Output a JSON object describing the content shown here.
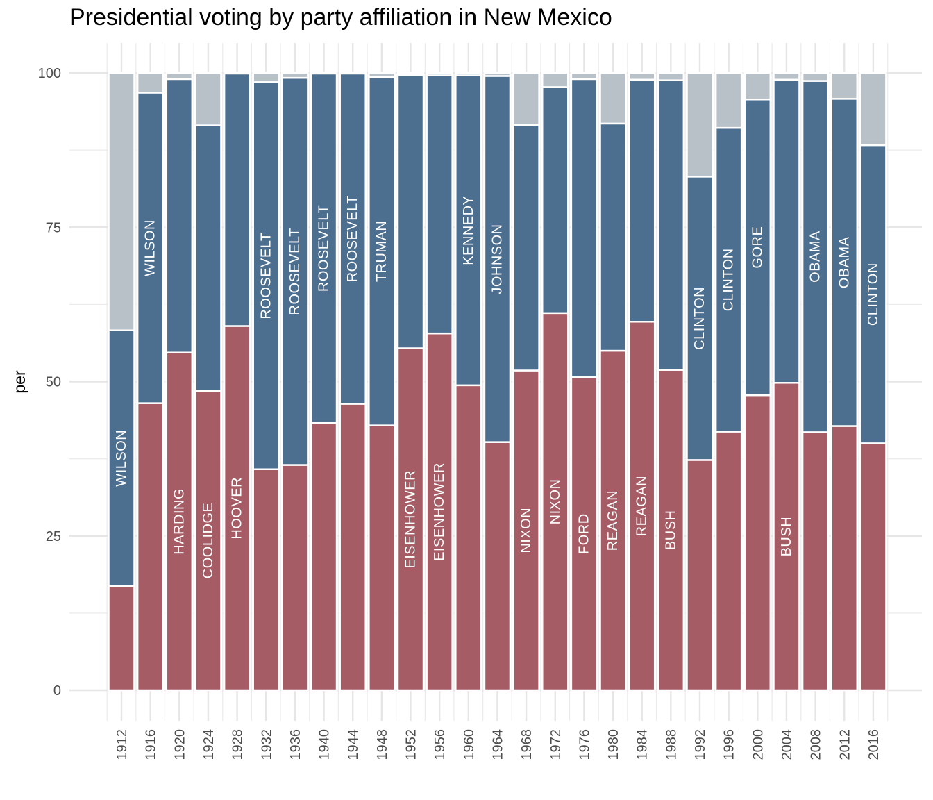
{
  "chart_data": {
    "type": "bar",
    "stacked": true,
    "title": "Presidential voting by party affiliation in New Mexico",
    "xlabel": "",
    "ylabel": "per",
    "ylim": [
      0,
      100
    ],
    "yticks": [
      0,
      25,
      50,
      75,
      100
    ],
    "grid": true,
    "legend": "none",
    "categories": [
      "1912",
      "1916",
      "1920",
      "1924",
      "1928",
      "1932",
      "1936",
      "1940",
      "1944",
      "1948",
      "1952",
      "1956",
      "1960",
      "1964",
      "1968",
      "1972",
      "1976",
      "1980",
      "1984",
      "1988",
      "1992",
      "1996",
      "2000",
      "2004",
      "2008",
      "2012",
      "2016"
    ],
    "winners": [
      "WILSON",
      "WILSON",
      "HARDING",
      "COOLIDGE",
      "HOOVER",
      "ROOSEVELT",
      "ROOSEVELT",
      "ROOSEVELT",
      "ROOSEVELT",
      "TRUMAN",
      "EISENHOWER",
      "EISENHOWER",
      "KENNEDY",
      "JOHNSON",
      "NIXON",
      "NIXON",
      "FORD",
      "REAGAN",
      "REAGAN",
      "BUSH",
      "CLINTON",
      "CLINTON",
      "GORE",
      "BUSH",
      "OBAMA",
      "OBAMA",
      "CLINTON"
    ],
    "series": [
      {
        "key": "republican",
        "color": "#a65c64",
        "values": [
          16.9,
          46.5,
          54.7,
          48.5,
          59.0,
          35.8,
          36.5,
          43.3,
          46.4,
          42.9,
          55.4,
          57.8,
          49.4,
          40.2,
          51.8,
          61.1,
          50.7,
          55.0,
          59.7,
          51.9,
          37.3,
          41.9,
          47.8,
          49.8,
          41.8,
          42.8,
          40.0
        ]
      },
      {
        "key": "democratic",
        "color": "#4c6e8f",
        "values": [
          41.4,
          50.3,
          44.3,
          43.0,
          40.9,
          62.7,
          62.7,
          56.6,
          53.5,
          56.4,
          44.3,
          41.8,
          50.2,
          59.3,
          39.8,
          36.6,
          48.3,
          36.8,
          39.2,
          46.9,
          45.9,
          49.2,
          47.9,
          49.1,
          56.9,
          53.0,
          48.3
        ]
      },
      {
        "key": "other",
        "color": "#b8c1c8",
        "values": [
          41.7,
          3.2,
          1.0,
          8.5,
          0.1,
          1.5,
          0.8,
          0.1,
          0.1,
          0.7,
          0.3,
          0.4,
          0.4,
          0.5,
          8.4,
          2.3,
          1.0,
          8.2,
          1.1,
          1.2,
          16.8,
          8.9,
          4.3,
          1.1,
          1.3,
          4.2,
          11.7
        ]
      }
    ]
  }
}
